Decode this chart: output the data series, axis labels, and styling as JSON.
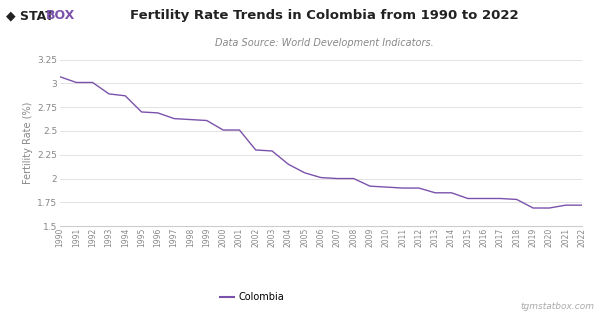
{
  "title": "Fertility Rate Trends in Colombia from 1990 to 2022",
  "subtitle": "Data Source: World Development Indicators.",
  "ylabel": "Fertility Rate (%)",
  "line_color": "#7B52AB",
  "background_color": "#ffffff",
  "grid_color": "#dddddd",
  "legend_label": "Colombia",
  "watermark": "tgmstatbox.com",
  "ylim": [
    1.5,
    3.25
  ],
  "yticks": [
    1.5,
    1.75,
    2.0,
    2.25,
    2.5,
    2.75,
    3.0,
    3.25
  ],
  "years": [
    1990,
    1991,
    1992,
    1993,
    1994,
    1995,
    1996,
    1997,
    1998,
    1999,
    2000,
    2001,
    2002,
    2003,
    2004,
    2005,
    2006,
    2007,
    2008,
    2009,
    2010,
    2011,
    2012,
    2013,
    2014,
    2015,
    2016,
    2017,
    2018,
    2019,
    2020,
    2021,
    2022
  ],
  "values": [
    3.07,
    3.01,
    3.01,
    2.89,
    2.87,
    2.7,
    2.69,
    2.63,
    2.62,
    2.61,
    2.51,
    2.51,
    2.3,
    2.29,
    2.15,
    2.06,
    2.01,
    2.0,
    2.0,
    1.92,
    1.91,
    1.9,
    1.9,
    1.85,
    1.85,
    1.79,
    1.79,
    1.79,
    1.78,
    1.69,
    1.69,
    1.72,
    1.72
  ],
  "logo_diamond_color": "#222222",
  "logo_stat_color": "#222222",
  "logo_box_color": "#7B52AB",
  "title_color": "#222222",
  "subtitle_color": "#888888",
  "ytick_color": "#888888",
  "xtick_color": "#888888",
  "ylabel_color": "#888888",
  "bottom_spine_color": "#cccccc",
  "watermark_color": "#aaaaaa"
}
